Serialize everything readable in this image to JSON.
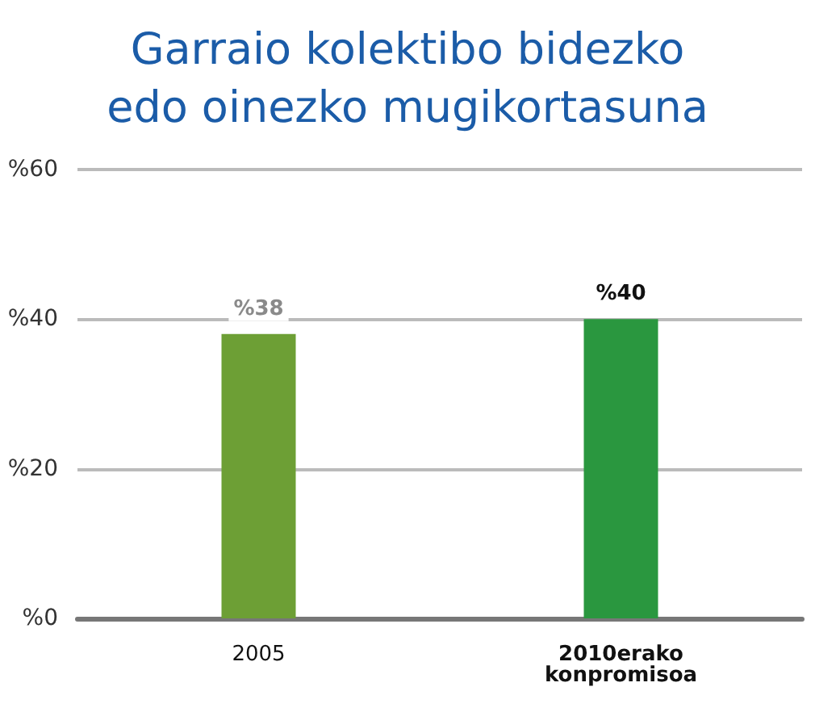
{
  "chart_data": {
    "type": "bar",
    "title": "Garraio kolektibo bidezko\nedo oinezko mugikortasuna",
    "categories": [
      "2005",
      "2010erako\nkonpromisoa"
    ],
    "values": [
      38,
      40
    ],
    "colors": [
      "#6d9f35",
      "#2a973f"
    ],
    "value_labels": [
      "%38",
      "%40"
    ],
    "ylim": [
      0,
      60
    ],
    "yticks": [
      {
        "value": 0,
        "label": "%0"
      },
      {
        "value": 20,
        "label": "%20"
      },
      {
        "value": 40,
        "label": "%40"
      },
      {
        "value": 60,
        "label": "%60"
      }
    ],
    "grid": "y"
  }
}
